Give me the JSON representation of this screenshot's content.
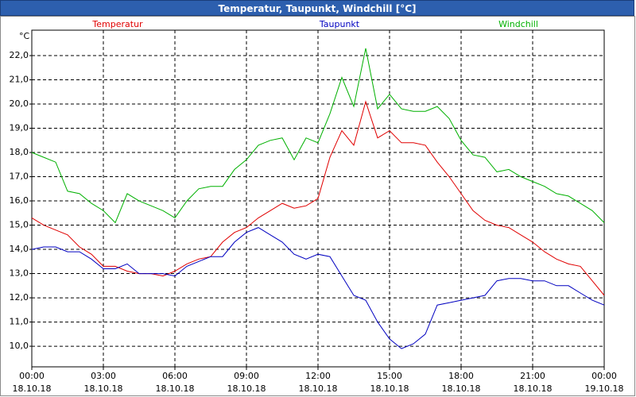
{
  "chart_data": {
    "type": "line",
    "title": "Temperatur, Taupunkt, Windchill [°C]",
    "y_unit": "°C",
    "x": [
      0,
      0.5,
      1,
      1.5,
      2,
      2.5,
      3,
      3.5,
      4,
      4.5,
      5,
      5.5,
      6,
      6.5,
      7,
      7.5,
      8,
      8.5,
      9,
      9.5,
      10,
      10.5,
      11,
      11.5,
      12,
      12.5,
      13,
      13.5,
      14,
      14.5,
      15,
      15.5,
      16,
      16.5,
      17,
      17.5,
      18,
      18.5,
      19,
      19.5,
      20,
      20.5,
      21,
      21.5,
      22,
      22.5,
      23,
      23.5,
      24
    ],
    "xlim": [
      0,
      24
    ],
    "xticks": [
      {
        "value": 0,
        "label": "00:00",
        "date": "18.10.18"
      },
      {
        "value": 3,
        "label": "03:00",
        "date": "18.10.18"
      },
      {
        "value": 6,
        "label": "06:00",
        "date": "18.10.18"
      },
      {
        "value": 9,
        "label": "09:00",
        "date": "18.10.18"
      },
      {
        "value": 12,
        "label": "12:00",
        "date": "18.10.18"
      },
      {
        "value": 15,
        "label": "15:00",
        "date": "18.10.18"
      },
      {
        "value": 18,
        "label": "18:00",
        "date": "18.10.18"
      },
      {
        "value": 21,
        "label": "21:00",
        "date": "18.10.18"
      },
      {
        "value": 24,
        "label": "00:00",
        "date": "19.10.18"
      }
    ],
    "ylim": [
      9.15,
      23.05
    ],
    "yticks": [
      {
        "value": 10,
        "label": "10,0"
      },
      {
        "value": 11,
        "label": "11,0"
      },
      {
        "value": 12,
        "label": "12,0"
      },
      {
        "value": 13,
        "label": "13,0"
      },
      {
        "value": 14,
        "label": "14,0"
      },
      {
        "value": 15,
        "label": "15,0"
      },
      {
        "value": 16,
        "label": "16,0"
      },
      {
        "value": 17,
        "label": "17,0"
      },
      {
        "value": 18,
        "label": "18,0"
      },
      {
        "value": 19,
        "label": "19,0"
      },
      {
        "value": 20,
        "label": "20,0"
      },
      {
        "value": 21,
        "label": "21,0"
      },
      {
        "value": 22,
        "label": "22,0"
      }
    ],
    "grid": true,
    "series": [
      {
        "name": "Temperatur",
        "color": "#e00000",
        "values": [
          15.3,
          15.0,
          14.8,
          14.6,
          14.1,
          13.8,
          13.3,
          13.3,
          13.1,
          13.0,
          13.0,
          12.9,
          13.1,
          13.4,
          13.6,
          13.7,
          14.3,
          14.7,
          14.9,
          15.3,
          15.6,
          15.9,
          15.7,
          15.8,
          16.1,
          17.8,
          18.9,
          18.3,
          20.1,
          18.6,
          18.9,
          18.4,
          18.4,
          18.3,
          17.6,
          17.0,
          16.3,
          15.6,
          15.2,
          15.0,
          14.9,
          14.6,
          14.3,
          13.9,
          13.6,
          13.4,
          13.3,
          12.7,
          12.1
        ]
      },
      {
        "name": "Taupunkt",
        "color": "#0000c0",
        "values": [
          14.0,
          14.1,
          14.1,
          13.9,
          13.9,
          13.6,
          13.2,
          13.2,
          13.4,
          13.0,
          13.0,
          13.0,
          12.9,
          13.3,
          13.5,
          13.7,
          13.7,
          14.3,
          14.7,
          14.9,
          14.6,
          14.3,
          13.8,
          13.6,
          13.8,
          13.7,
          12.9,
          12.1,
          11.9,
          11.0,
          10.3,
          9.9,
          10.1,
          10.5,
          11.7,
          11.8,
          11.9,
          12.0,
          12.1,
          12.7,
          12.8,
          12.8,
          12.7,
          12.7,
          12.5,
          12.5,
          12.2,
          11.9,
          11.7
        ]
      },
      {
        "name": "Windchill",
        "color": "#00b000",
        "values": [
          18.0,
          17.8,
          17.6,
          16.4,
          16.3,
          15.9,
          15.6,
          15.1,
          16.3,
          16.0,
          15.8,
          15.6,
          15.3,
          16.0,
          16.5,
          16.6,
          16.6,
          17.3,
          17.7,
          18.3,
          18.5,
          18.6,
          17.7,
          18.6,
          18.4,
          19.6,
          21.1,
          19.9,
          22.3,
          19.8,
          20.4,
          19.8,
          19.7,
          19.7,
          19.9,
          19.4,
          18.5,
          17.9,
          17.8,
          17.2,
          17.3,
          17.0,
          16.8,
          16.6,
          16.3,
          16.2,
          15.9,
          15.6,
          15.1
        ]
      }
    ]
  }
}
